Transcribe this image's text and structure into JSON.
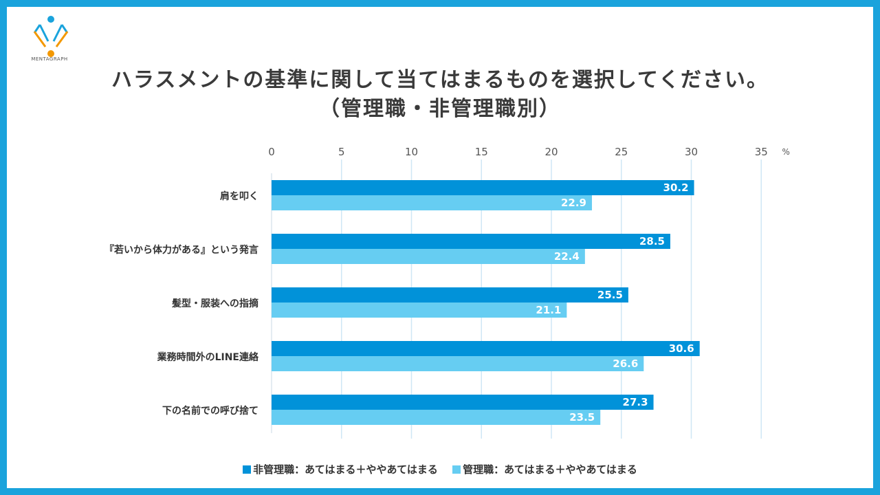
{
  "brand": {
    "name": "MENTAGRAPH"
  },
  "colors": {
    "frame": "#1aa3dc",
    "series1": "#0192d9",
    "series2": "#66cdf2",
    "grid": "#cfe7f5"
  },
  "chart_data": {
    "type": "bar",
    "orientation": "horizontal",
    "title": "ハラスメントの基準に関して当てはまるものを選択してください。",
    "subtitle": "（管理職・非管理職別）",
    "unit": "%",
    "xlim": [
      0,
      35
    ],
    "ticks": [
      0,
      5,
      10,
      15,
      20,
      25,
      30,
      35
    ],
    "categories": [
      "肩を叩く",
      "『若いから体力がある』という発言",
      "髪型・服装への指摘",
      "業務時間外のLINE連絡",
      "下の名前での呼び捨て"
    ],
    "series": [
      {
        "name": "非管理職：あてはまる＋ややあてはまる",
        "color": "#0192d9",
        "values": [
          30.2,
          28.5,
          25.5,
          30.6,
          27.3
        ]
      },
      {
        "name": "管理職：あてはまる＋ややあてはまる",
        "color": "#66cdf2",
        "values": [
          22.9,
          22.4,
          21.1,
          26.6,
          23.5
        ]
      }
    ],
    "legend_position": "bottom"
  }
}
